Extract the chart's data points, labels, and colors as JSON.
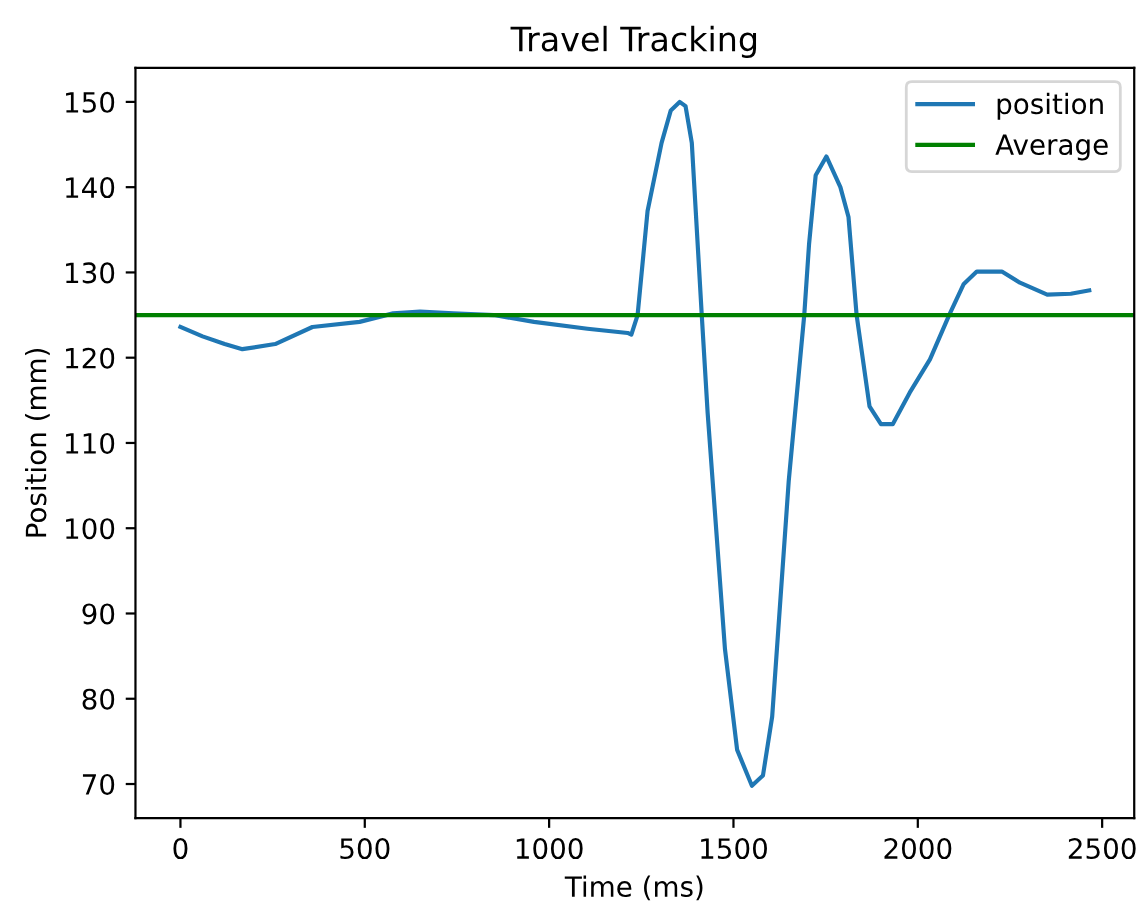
{
  "chart_data": {
    "type": "line",
    "title": "Travel Tracking",
    "xlabel": "Time (ms)",
    "ylabel": "Position (mm)",
    "series": [
      {
        "name": "position",
        "color": "#1f77b4",
        "x": [
          0,
          60,
          120,
          168,
          257,
          358,
          486,
          577,
          650,
          740,
          850,
          959,
          1104,
          1213,
          1223,
          1240,
          1267,
          1305,
          1330,
          1354,
          1370,
          1387,
          1414,
          1430,
          1477,
          1510,
          1550,
          1580,
          1605,
          1650,
          1692,
          1705,
          1723,
          1752,
          1790,
          1812,
          1834,
          1869,
          1900,
          1932,
          1978,
          2033,
          2085,
          2124,
          2160,
          2228,
          2277,
          2351,
          2415,
          2465
        ],
        "values": [
          123.6,
          122.5,
          121.6,
          121.0,
          121.6,
          123.6,
          124.2,
          125.2,
          125.4,
          125.2,
          125.0,
          124.2,
          123.4,
          122.9,
          122.7,
          125.0,
          137.2,
          145.2,
          149.0,
          150.0,
          149.5,
          145.2,
          125.0,
          113.5,
          85.8,
          74.0,
          69.8,
          71.0,
          77.9,
          105.6,
          125.0,
          133.3,
          141.4,
          143.6,
          140.0,
          136.5,
          125.0,
          114.3,
          112.2,
          112.2,
          115.9,
          119.8,
          125.0,
          128.6,
          130.1,
          130.1,
          128.8,
          127.4,
          127.5,
          127.9
        ]
      }
    ],
    "ref_lines": [
      {
        "axis": "y",
        "value": 125.0,
        "label": "Average",
        "color": "#008000"
      }
    ],
    "xlim": [
      -122,
      2587
    ],
    "ylim": [
      66.0,
      154.0
    ],
    "xticks": [
      0,
      500,
      1000,
      1500,
      2000,
      2500
    ],
    "yticks": [
      70,
      80,
      90,
      100,
      110,
      120,
      130,
      140,
      150
    ],
    "legend": "top right",
    "grid": false
  }
}
